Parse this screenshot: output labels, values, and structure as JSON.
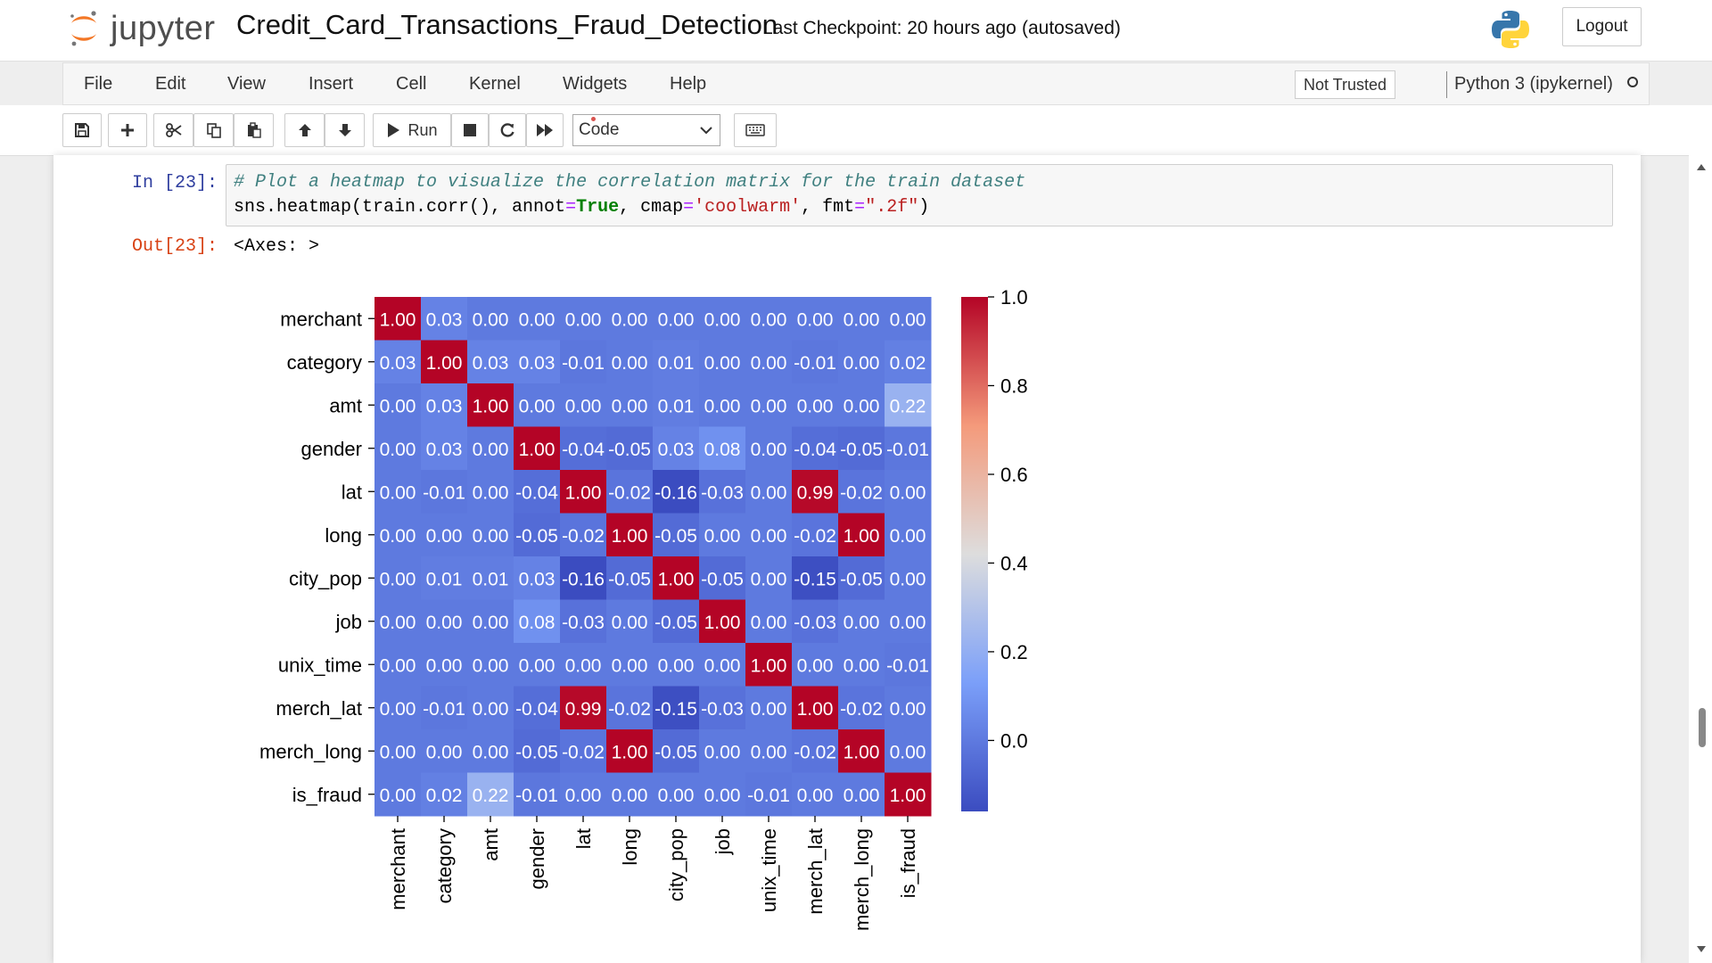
{
  "header": {
    "logo_text": "jupyter",
    "notebook_name": "Credit_Card_Transactions_Fraud_Detection",
    "checkpoint": "Last Checkpoint: 20 hours ago",
    "autosave_status": "(autosaved)",
    "logout_label": "Logout"
  },
  "menubar": {
    "items": [
      "File",
      "Edit",
      "View",
      "Insert",
      "Cell",
      "Kernel",
      "Widgets",
      "Help"
    ],
    "trust_label": "Not Trusted",
    "kernel_name": "Python 3 (ipykernel)"
  },
  "toolbar": {
    "run_label": "Run",
    "cell_type": "Code",
    "icons": [
      "save-icon",
      "plus-icon",
      "cut-icon",
      "copy-icon",
      "paste-icon",
      "arrow-up-icon",
      "arrow-down-icon",
      "run-icon",
      "stop-icon",
      "restart-icon",
      "fast-forward-icon",
      "keyboard-icon"
    ]
  },
  "cell": {
    "in_prompt": "In [23]:",
    "code_comment": "# Plot a heatmap to visualize the correlation matrix for the train dataset",
    "code_line2": {
      "p1": "sns.heatmap(train.corr(), annot",
      "eq1": "=",
      "kw": "True",
      "p2": ", cmap",
      "eq2": "=",
      "s1": "'coolwarm'",
      "p3": ", fmt",
      "eq3": "=",
      "s2": "\".2f\"",
      "p4": ")"
    },
    "out_prompt": "Out[23]:",
    "out_text": "<Axes: >"
  },
  "chart_data": {
    "type": "heatmap",
    "labels": [
      "merchant",
      "category",
      "amt",
      "gender",
      "lat",
      "long",
      "city_pop",
      "job",
      "unix_time",
      "merch_lat",
      "merch_long",
      "is_fraud"
    ],
    "matrix": [
      [
        1.0,
        0.03,
        -0.0,
        0.0,
        -0.0,
        -0.0,
        0.0,
        0.0,
        -0.0,
        -0.0,
        -0.0,
        -0.0
      ],
      [
        0.03,
        1.0,
        0.03,
        0.03,
        -0.01,
        -0.0,
        0.01,
        0.0,
        0.0,
        -0.01,
        -0.0,
        0.02
      ],
      [
        -0.0,
        0.03,
        1.0,
        -0.0,
        -0.0,
        -0.0,
        0.01,
        -0.0,
        -0.0,
        -0.0,
        -0.0,
        0.22
      ],
      [
        0.0,
        0.03,
        -0.0,
        1.0,
        -0.04,
        -0.05,
        0.03,
        0.08,
        0.0,
        -0.04,
        -0.05,
        -0.01
      ],
      [
        -0.0,
        -0.01,
        -0.0,
        -0.04,
        1.0,
        -0.02,
        -0.16,
        -0.03,
        0.0,
        0.99,
        -0.02,
        0.0
      ],
      [
        -0.0,
        -0.0,
        -0.0,
        -0.05,
        -0.02,
        1.0,
        -0.05,
        -0.0,
        -0.0,
        -0.02,
        1.0,
        0.0
      ],
      [
        0.0,
        0.01,
        0.01,
        0.03,
        -0.16,
        -0.05,
        1.0,
        -0.05,
        -0.0,
        -0.15,
        -0.05,
        0.0
      ],
      [
        0.0,
        0.0,
        -0.0,
        0.08,
        -0.03,
        -0.0,
        -0.05,
        1.0,
        0.0,
        -0.03,
        -0.0,
        -0.0
      ],
      [
        -0.0,
        0.0,
        -0.0,
        0.0,
        0.0,
        -0.0,
        -0.0,
        0.0,
        1.0,
        0.0,
        -0.0,
        -0.01
      ],
      [
        -0.0,
        -0.01,
        -0.0,
        -0.04,
        0.99,
        -0.02,
        -0.15,
        -0.03,
        0.0,
        1.0,
        -0.02,
        0.0
      ],
      [
        -0.0,
        -0.0,
        -0.0,
        -0.05,
        -0.02,
        1.0,
        -0.05,
        -0.0,
        -0.0,
        -0.02,
        1.0,
        0.0
      ],
      [
        -0.0,
        0.02,
        0.22,
        -0.01,
        0.0,
        0.0,
        0.0,
        -0.0,
        -0.01,
        0.0,
        0.0,
        1.0
      ]
    ],
    "colormap": "coolwarm",
    "vmin": -0.16,
    "vmax": 1.0,
    "colorbar_ticks": [
      1.0,
      0.8,
      0.6,
      0.4,
      0.2,
      0.0
    ],
    "colorbar_tick_labels": [
      "1.0",
      "0.8",
      "0.6",
      "0.4",
      "0.2",
      "0.0"
    ],
    "annot_format": ".2f",
    "title": "",
    "xlabel": "",
    "ylabel": ""
  }
}
